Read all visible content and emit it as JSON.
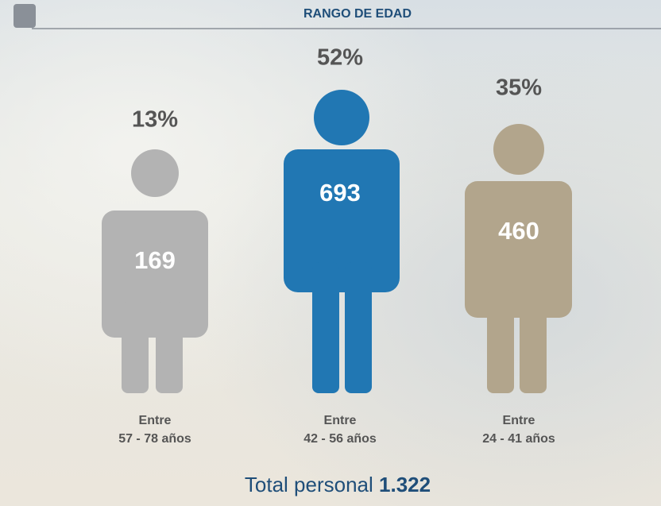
{
  "header": {
    "title": "RANGO DE EDAD"
  },
  "groups": [
    {
      "percent": "13%",
      "count": "169",
      "label_line1": "Entre",
      "label_line2": "57 - 78 años"
    },
    {
      "percent": "52%",
      "count": "693",
      "label_line1": "Entre",
      "label_line2": "42 - 56 años"
    },
    {
      "percent": "35%",
      "count": "460",
      "label_line1": "Entre",
      "label_line2": "24 - 41 años"
    }
  ],
  "total": {
    "label": "Total personal",
    "value": "1.322"
  }
}
